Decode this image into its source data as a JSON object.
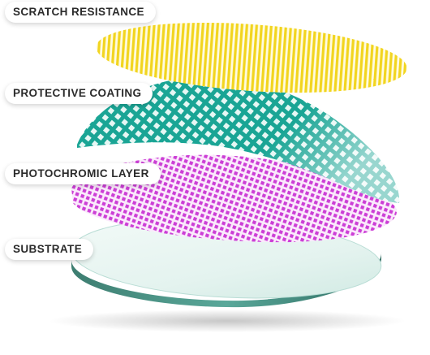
{
  "labels": {
    "scratch_resistance": "SCRATCH RESISTANCE",
    "protective_coating": "PROTECTIVE COATING",
    "photochromic_layer": "PHOTOCHROMIC LAYER",
    "substrate": "SUBSTRATE"
  },
  "colors": {
    "scratch_yellow": "#f2d51f",
    "protective_teal": "#19a89a",
    "photochromic_magenta": "#cc3fd6",
    "substrate_glass": "#d9efe9",
    "substrate_edge": "#2f6f63"
  }
}
